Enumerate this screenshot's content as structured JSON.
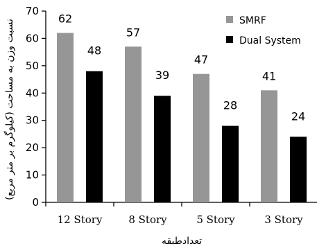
{
  "chart_data": {
    "type": "bar",
    "categories": [
      "12 Story",
      "8 Story",
      "5 Story",
      "3 Story"
    ],
    "series": [
      {
        "name": "SMRF",
        "values": [
          62,
          57,
          47,
          41
        ],
        "color": "#969696"
      },
      {
        "name": "Dual System",
        "values": [
          48,
          39,
          28,
          24
        ],
        "color": "#000000"
      }
    ],
    "ylabel": "نسبت وزن به مساحت (کیلوگرم بر متر مربع)",
    "xlabel": "تعدادطبقه",
    "ylim": [
      0,
      70
    ],
    "yticks": [
      0,
      10,
      20,
      30,
      40,
      50,
      60,
      70
    ],
    "grid": false,
    "legend_position": "top-right"
  }
}
